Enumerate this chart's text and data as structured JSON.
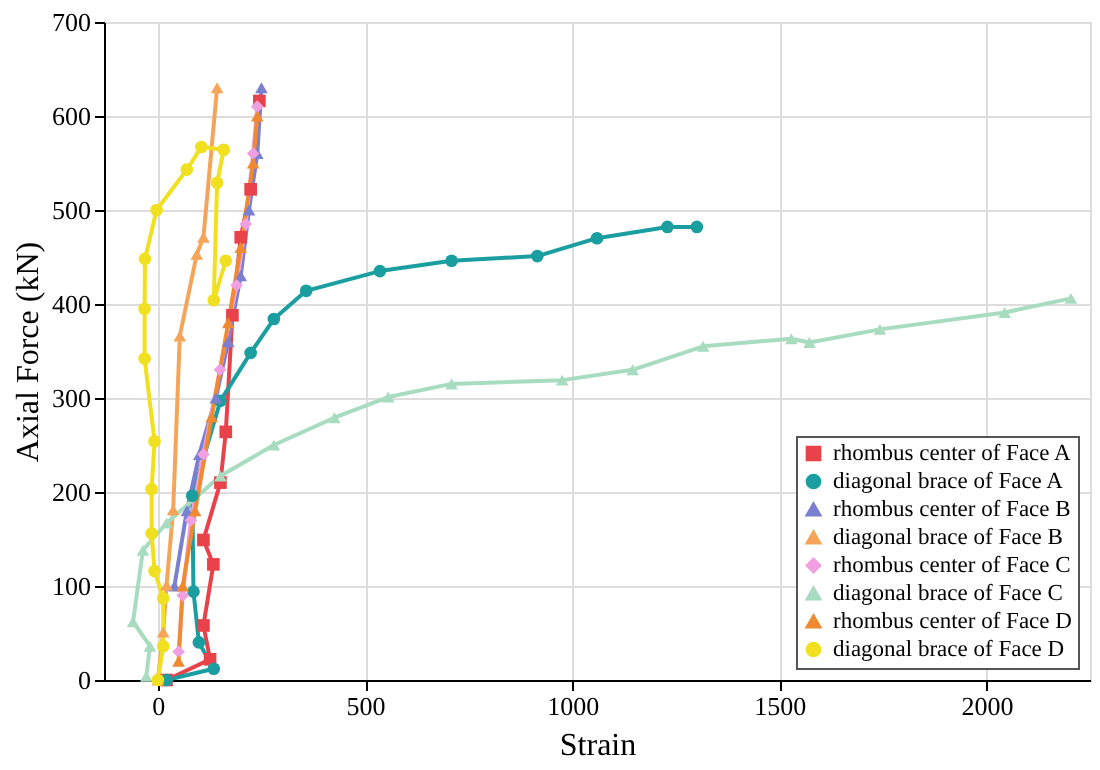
{
  "chart_data": {
    "type": "line",
    "xlabel": "Strain",
    "ylabel": "Axial Force (kN)",
    "xlim": [
      -130,
      2250
    ],
    "xticks": [
      0,
      500,
      1000,
      1500,
      2000
    ],
    "ylim": [
      0,
      700
    ],
    "yticks": [
      0,
      100,
      200,
      300,
      400,
      500,
      600,
      700
    ],
    "grid": true,
    "legend": "bottom right",
    "series": [
      {
        "name": "rhombus center of Face A",
        "color": "#e8434b",
        "marker": "square",
        "x": [
          21,
          126,
          110,
          134,
          110,
          151,
          164,
          180,
          200,
          224,
          245
        ],
        "values": [
          0,
          22,
          58,
          123,
          149,
          210,
          264,
          388,
          471,
          522,
          616
        ]
      },
      {
        "name": "diagonal brace of Face A",
        "color": "#1a9ea0",
        "marker": "circle",
        "x": [
          21,
          135,
          99,
          86,
          83,
          151,
          224,
          280,
          358,
          536,
          709,
          916,
          1060,
          1230,
          1301
        ],
        "values": [
          0,
          12,
          40,
          94,
          196,
          297,
          348,
          384,
          414,
          435,
          446,
          451,
          470,
          482,
          482
        ]
      },
      {
        "name": "rhombus center of Face B",
        "color": "#7b7fd0",
        "marker": "triangle",
        "x": [
          40,
          70,
          100,
          140,
          170,
          200,
          220,
          240,
          250
        ],
        "values": [
          100,
          180,
          240,
          300,
          360,
          430,
          500,
          560,
          630
        ]
      },
      {
        "name": "diagonal brace of Face B",
        "color": "#f5a55a",
        "marker": "triangle",
        "x": [
          0,
          13,
          21,
          37,
          53,
          94,
          110,
          143
        ],
        "values": [
          0,
          51,
          101,
          181,
          366,
          453,
          471,
          630
        ]
      },
      {
        "name": "rhombus center of Face C",
        "color": "#f0a0e0",
        "marker": "diamond",
        "x": [
          50,
          60,
          80,
          110,
          150,
          190,
          212,
          230,
          240
        ],
        "values": [
          30,
          90,
          170,
          240,
          330,
          420,
          485,
          560,
          610
        ]
      },
      {
        "name": "diagonal brace of Face C",
        "color": "#a8dcc0",
        "marker": "triangle",
        "x": [
          -28,
          -19,
          -60,
          -36,
          21,
          151,
          280,
          426,
          556,
          709,
          976,
          1146,
          1316,
          1529,
          1573,
          1743,
          2044,
          2204
        ],
        "values": [
          4,
          36,
          62,
          138,
          167,
          217,
          250,
          279,
          301,
          315,
          319,
          330,
          355,
          363,
          359,
          373,
          391,
          406
        ]
      },
      {
        "name": "rhombus center of Face D",
        "color": "#f08a30",
        "marker": "triangle",
        "x": [
          50,
          60,
          90,
          130,
          170,
          200,
          230,
          240
        ],
        "values": [
          20,
          100,
          180,
          280,
          380,
          460,
          550,
          600
        ]
      },
      {
        "name": "diagonal brace of Face D",
        "color": "#f0e020",
        "marker": "circle",
        "x": [
          0,
          13,
          13,
          -8,
          -15,
          -15,
          -8,
          -32,
          -32,
          -31,
          -3,
          70,
          105,
          159,
          143,
          135,
          164
        ],
        "values": [
          0,
          36,
          87,
          116,
          156,
          203,
          254,
          342,
          395,
          448,
          500,
          543,
          567,
          564,
          529,
          404,
          446
        ]
      }
    ]
  }
}
